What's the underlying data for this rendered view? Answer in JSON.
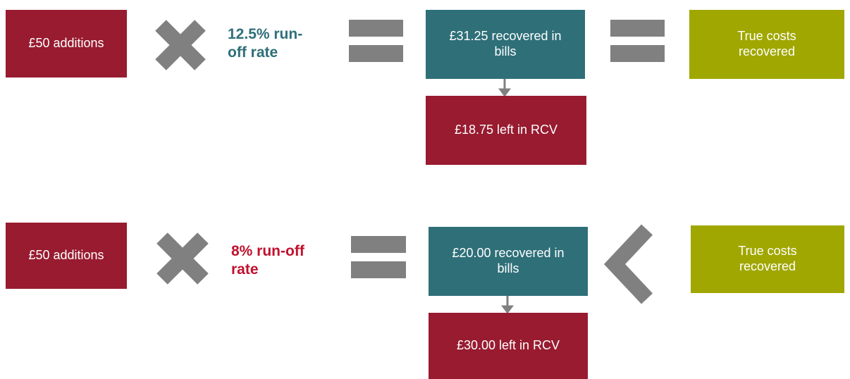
{
  "rows": [
    {
      "input": "£50 additions",
      "rate": "12.5% run-off rate",
      "recovered": "£31.25 recovered in bills",
      "left": "£18.75 left in RCV",
      "true_costs": "True costs recovered"
    },
    {
      "input": "£50 additions",
      "rate": "8% run-off rate",
      "recovered": "£20.00 recovered in bills",
      "left": "£30.00 left in RCV",
      "true_costs": "True costs recovered"
    }
  ]
}
